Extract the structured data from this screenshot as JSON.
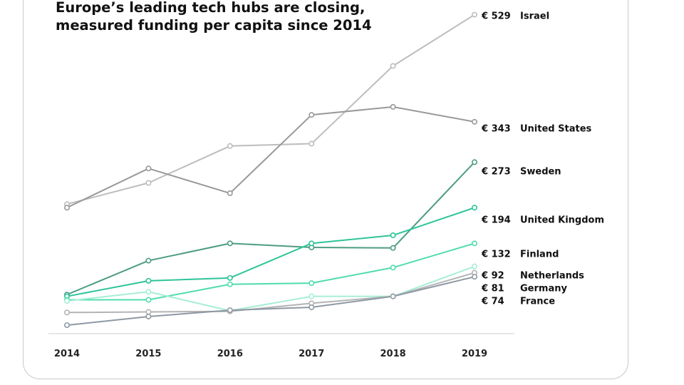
{
  "chart_data": {
    "type": "line",
    "title": [
      "Europe’s leading tech hubs are closing,",
      "measured funding per capita since 2014"
    ],
    "x": [
      "2014",
      "2015",
      "2016",
      "2017",
      "2018",
      "2019"
    ],
    "xlabel": "",
    "ylabel": "",
    "ylim": [
      0,
      560
    ],
    "grid": false,
    "series": [
      {
        "name": "Israel",
        "label": "€ 529",
        "color": "#bdbdbd",
        "values": [
          200,
          237,
          301,
          305,
          440,
          529
        ]
      },
      {
        "name": "United States",
        "label": "€ 343",
        "color": "#999999",
        "values": [
          194,
          262,
          219,
          355,
          369,
          343
        ]
      },
      {
        "name": "Sweden",
        "label": "€ 273",
        "color": "#4d9c82",
        "values": [
          43,
          102,
          132,
          125,
          124,
          273
        ]
      },
      {
        "name": "United Kingdom",
        "label": "€ 194",
        "color": "#2fc499",
        "values": [
          40,
          67,
          72,
          132,
          146,
          194
        ]
      },
      {
        "name": "Finland",
        "label": "€ 132",
        "color": "#4fdcae",
        "values": [
          34,
          34,
          61,
          63,
          90,
          132
        ]
      },
      {
        "name": "Netherlands",
        "label": "€ 92",
        "color": "#a6eed5",
        "values": [
          32,
          48,
          15,
          40,
          40,
          92
        ]
      },
      {
        "name": "Germany",
        "label": "€ 81",
        "color": "#b4b4b4",
        "values": [
          12,
          13,
          14,
          28,
          40,
          81
        ]
      },
      {
        "name": "France",
        "label": "€ 74",
        "color": "#8e99a4",
        "values": [
          -10,
          5,
          16,
          21,
          40,
          74
        ]
      }
    ]
  }
}
